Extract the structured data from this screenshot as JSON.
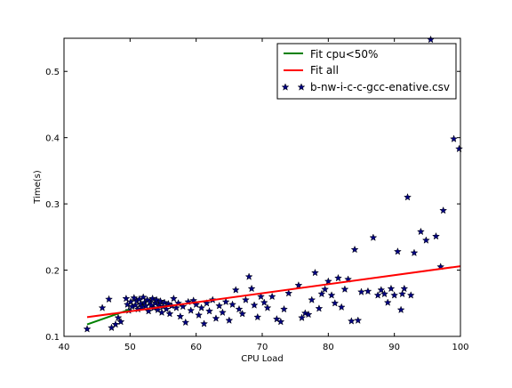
{
  "chart_data": {
    "type": "scatter",
    "title": "",
    "xlabel": "CPU Load",
    "ylabel": "Time(s)",
    "xlim": [
      40,
      100
    ],
    "ylim": [
      0.1,
      0.55
    ],
    "xticks": [
      "40",
      "50",
      "60",
      "70",
      "80",
      "90",
      "100"
    ],
    "yticks": [
      "0.1",
      "0.2",
      "0.3",
      "0.4",
      "0.5"
    ],
    "xtick_values": [
      40,
      50,
      60,
      70,
      80,
      90,
      100
    ],
    "ytick_values": [
      0.1,
      0.2,
      0.3,
      0.4,
      0.5
    ],
    "grid": false,
    "legend_position": "top-right",
    "series": [
      {
        "name": "Fit cpu<50%",
        "kind": "line",
        "color": "#008000",
        "points": [
          [
            43.5,
            0.118
          ],
          [
            49.8,
            0.14
          ]
        ]
      },
      {
        "name": "Fit all",
        "kind": "line",
        "color": "#ff0000",
        "points": [
          [
            43.5,
            0.129
          ],
          [
            100,
            0.206
          ]
        ]
      },
      {
        "name": "b-nw-i-c-c-gcc-enative.csv",
        "kind": "scatter",
        "marker": "star",
        "color": "#000080",
        "points": [
          [
            43.5,
            0.111
          ],
          [
            45.8,
            0.143
          ],
          [
            46.8,
            0.156
          ],
          [
            47.2,
            0.113
          ],
          [
            47.8,
            0.118
          ],
          [
            48.2,
            0.128
          ],
          [
            48.6,
            0.122
          ],
          [
            49.4,
            0.157
          ],
          [
            49.6,
            0.148
          ],
          [
            49.8,
            0.139
          ],
          [
            50.1,
            0.152
          ],
          [
            50.3,
            0.145
          ],
          [
            50.6,
            0.158
          ],
          [
            50.8,
            0.147
          ],
          [
            51.0,
            0.153
          ],
          [
            51.2,
            0.141
          ],
          [
            51.4,
            0.156
          ],
          [
            51.6,
            0.149
          ],
          [
            51.8,
            0.144
          ],
          [
            52.0,
            0.159
          ],
          [
            52.2,
            0.151
          ],
          [
            52.4,
            0.146
          ],
          [
            52.6,
            0.155
          ],
          [
            52.8,
            0.138
          ],
          [
            53.0,
            0.152
          ],
          [
            53.2,
            0.147
          ],
          [
            53.4,
            0.157
          ],
          [
            53.6,
            0.143
          ],
          [
            53.8,
            0.15
          ],
          [
            54.0,
            0.155
          ],
          [
            54.2,
            0.14
          ],
          [
            54.4,
            0.148
          ],
          [
            54.6,
            0.153
          ],
          [
            54.8,
            0.136
          ],
          [
            55.0,
            0.145
          ],
          [
            55.2,
            0.151
          ],
          [
            55.5,
            0.141
          ],
          [
            55.8,
            0.149
          ],
          [
            56.0,
            0.134
          ],
          [
            56.3,
            0.146
          ],
          [
            56.6,
            0.157
          ],
          [
            57.0,
            0.143
          ],
          [
            57.3,
            0.15
          ],
          [
            57.6,
            0.13
          ],
          [
            58.0,
            0.145
          ],
          [
            58.4,
            0.121
          ],
          [
            58.8,
            0.152
          ],
          [
            59.2,
            0.139
          ],
          [
            59.6,
            0.154
          ],
          [
            60.0,
            0.148
          ],
          [
            60.4,
            0.132
          ],
          [
            60.8,
            0.143
          ],
          [
            61.2,
            0.119
          ],
          [
            61.6,
            0.15
          ],
          [
            62.0,
            0.138
          ],
          [
            62.5,
            0.155
          ],
          [
            63.0,
            0.127
          ],
          [
            63.5,
            0.146
          ],
          [
            64.0,
            0.136
          ],
          [
            64.5,
            0.152
          ],
          [
            65.0,
            0.124
          ],
          [
            65.5,
            0.148
          ],
          [
            66.0,
            0.17
          ],
          [
            66.5,
            0.141
          ],
          [
            67.0,
            0.134
          ],
          [
            67.5,
            0.155
          ],
          [
            68.0,
            0.19
          ],
          [
            68.4,
            0.172
          ],
          [
            68.8,
            0.147
          ],
          [
            69.3,
            0.129
          ],
          [
            69.8,
            0.16
          ],
          [
            70.3,
            0.151
          ],
          [
            70.8,
            0.143
          ],
          [
            71.5,
            0.16
          ],
          [
            72.2,
            0.126
          ],
          [
            72.8,
            0.122
          ],
          [
            73.3,
            0.141
          ],
          [
            74.0,
            0.165
          ],
          [
            75.5,
            0.177
          ],
          [
            76.0,
            0.128
          ],
          [
            76.5,
            0.135
          ],
          [
            77.0,
            0.133
          ],
          [
            77.5,
            0.155
          ],
          [
            78.0,
            0.196
          ],
          [
            78.6,
            0.142
          ],
          [
            79.0,
            0.164
          ],
          [
            79.5,
            0.171
          ],
          [
            80.0,
            0.183
          ],
          [
            80.5,
            0.162
          ],
          [
            81.0,
            0.15
          ],
          [
            81.5,
            0.188
          ],
          [
            82.0,
            0.144
          ],
          [
            82.5,
            0.171
          ],
          [
            83.0,
            0.186
          ],
          [
            83.5,
            0.123
          ],
          [
            84.0,
            0.231
          ],
          [
            84.5,
            0.124
          ],
          [
            85.0,
            0.167
          ],
          [
            86.0,
            0.168
          ],
          [
            86.8,
            0.249
          ],
          [
            87.5,
            0.162
          ],
          [
            88.0,
            0.17
          ],
          [
            88.5,
            0.164
          ],
          [
            89.0,
            0.151
          ],
          [
            89.5,
            0.172
          ],
          [
            90.0,
            0.162
          ],
          [
            90.5,
            0.228
          ],
          [
            91.0,
            0.14
          ],
          [
            91.2,
            0.164
          ],
          [
            91.5,
            0.172
          ],
          [
            92.0,
            0.31
          ],
          [
            92.5,
            0.162
          ],
          [
            93.0,
            0.226
          ],
          [
            94.0,
            0.258
          ],
          [
            94.8,
            0.245
          ],
          [
            95.5,
            0.548
          ],
          [
            96.3,
            0.251
          ],
          [
            97.0,
            0.205
          ],
          [
            97.4,
            0.29
          ],
          [
            99.0,
            0.398
          ],
          [
            99.8,
            0.383
          ]
        ]
      }
    ]
  }
}
